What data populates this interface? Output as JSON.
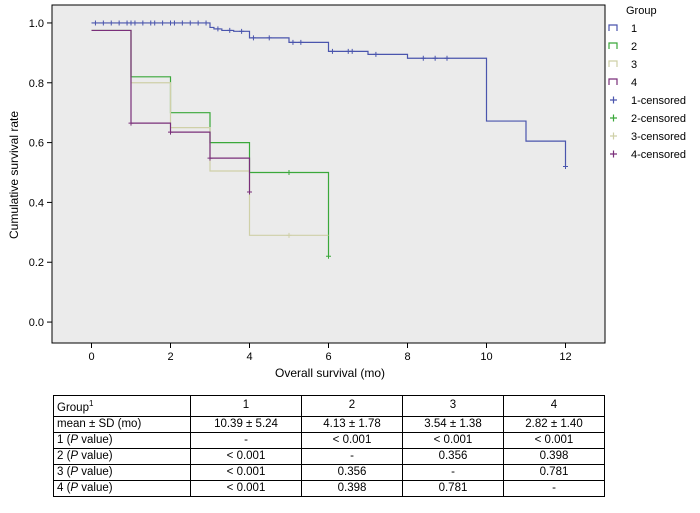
{
  "chart_data": {
    "type": "line",
    "subtype": "kaplan-meier step",
    "xlabel": "Overall survival (mo)",
    "ylabel": "Cumulative survival rate",
    "xlim": [
      -1,
      13
    ],
    "ylim": [
      -0.07,
      1.06
    ],
    "xticks": [
      "0",
      "2",
      "4",
      "6",
      "8",
      "10",
      "12"
    ],
    "yticks": [
      "0.0",
      "0.2",
      "0.4",
      "0.6",
      "0.8",
      "1.0"
    ],
    "grid": false,
    "background": "#ebebeb",
    "legend": {
      "title": "Group",
      "position": "right",
      "entries": [
        "1",
        "2",
        "3",
        "4",
        "1-censored",
        "2-censored",
        "3-censored",
        "4-censored"
      ]
    },
    "series": [
      {
        "name": "1",
        "color": "#4a55ad",
        "steps": [
          [
            0,
            1.0
          ],
          [
            3.0,
            0.985
          ],
          [
            3.1,
            0.98
          ],
          [
            3.3,
            0.975
          ],
          [
            3.6,
            0.972
          ],
          [
            4.0,
            0.95
          ],
          [
            5.0,
            0.935
          ],
          [
            6.0,
            0.905
          ],
          [
            7.0,
            0.895
          ],
          [
            8.0,
            0.882
          ],
          [
            10.0,
            0.672
          ],
          [
            11.0,
            0.605
          ],
          [
            12.0,
            0.52
          ]
        ],
        "end": 12.0,
        "censored": [
          [
            0.1,
            1.0
          ],
          [
            0.3,
            1.0
          ],
          [
            0.5,
            1.0
          ],
          [
            0.7,
            1.0
          ],
          [
            0.9,
            1.0
          ],
          [
            1.0,
            1.0
          ],
          [
            1.1,
            1.0
          ],
          [
            1.3,
            1.0
          ],
          [
            1.5,
            1.0
          ],
          [
            1.6,
            1.0
          ],
          [
            1.8,
            1.0
          ],
          [
            2.0,
            1.0
          ],
          [
            2.1,
            1.0
          ],
          [
            2.3,
            1.0
          ],
          [
            2.5,
            1.0
          ],
          [
            2.7,
            1.0
          ],
          [
            2.9,
            1.0
          ],
          [
            3.2,
            0.98
          ],
          [
            3.5,
            0.975
          ],
          [
            3.8,
            0.972
          ],
          [
            4.1,
            0.95
          ],
          [
            4.5,
            0.95
          ],
          [
            5.1,
            0.935
          ],
          [
            5.3,
            0.935
          ],
          [
            6.1,
            0.905
          ],
          [
            6.5,
            0.905
          ],
          [
            6.6,
            0.905
          ],
          [
            7.2,
            0.895
          ],
          [
            8.4,
            0.882
          ],
          [
            8.7,
            0.882
          ],
          [
            9.0,
            0.882
          ],
          [
            12.0,
            0.52
          ]
        ]
      },
      {
        "name": "2",
        "color": "#3aa83a",
        "steps": [
          [
            0,
            0.975
          ],
          [
            1.0,
            0.82
          ],
          [
            2.0,
            0.7
          ],
          [
            3.0,
            0.6
          ],
          [
            4.0,
            0.5
          ],
          [
            6.0,
            0.22
          ]
        ],
        "end": 6.0,
        "censored": [
          [
            5.0,
            0.5
          ],
          [
            6.0,
            0.22
          ]
        ]
      },
      {
        "name": "3",
        "color": "#cfd0a8",
        "steps": [
          [
            0,
            0.975
          ],
          [
            1.0,
            0.8
          ],
          [
            2.0,
            0.65
          ],
          [
            3.0,
            0.505
          ],
          [
            4.0,
            0.29
          ],
          [
            6.0,
            0.29
          ]
        ],
        "end": 6.0,
        "censored": [
          [
            5.0,
            0.29
          ]
        ]
      },
      {
        "name": "4",
        "color": "#7a2f7a",
        "steps": [
          [
            0,
            0.975
          ],
          [
            1.0,
            0.665
          ],
          [
            2.0,
            0.635
          ],
          [
            3.0,
            0.548
          ],
          [
            4.0,
            0.435
          ]
        ],
        "end": 4.0,
        "censored": [
          [
            1.0,
            0.665
          ],
          [
            2.0,
            0.635
          ],
          [
            3.0,
            0.548
          ],
          [
            4.0,
            0.435
          ]
        ]
      }
    ]
  },
  "table": {
    "header": [
      "Group",
      "1",
      "2",
      "3",
      "4"
    ],
    "header_sup": "1",
    "rows": [
      {
        "label": "mean ± SD (mo)",
        "values": [
          "10.39 ± 5.24",
          "4.13 ± 1.78",
          "3.54 ± 1.38",
          "2.82 ± 1.40"
        ]
      },
      {
        "label_pre": "1 (",
        "label_it": "P",
        "label_post": " value)",
        "values": [
          "-",
          "< 0.001",
          "< 0.001",
          "< 0.001"
        ]
      },
      {
        "label_pre": "2 (",
        "label_it": "P",
        "label_post": " value)",
        "values": [
          "< 0.001",
          "-",
          "0.356",
          "0.398"
        ]
      },
      {
        "label_pre": "3 (",
        "label_it": "P",
        "label_post": " value)",
        "values": [
          "< 0.001",
          "0.356",
          "-",
          "0.781"
        ]
      },
      {
        "label_pre": "4 (",
        "label_it": "P",
        "label_post": " value)",
        "values": [
          "< 0.001",
          "0.398",
          "0.781",
          "-"
        ]
      }
    ]
  }
}
